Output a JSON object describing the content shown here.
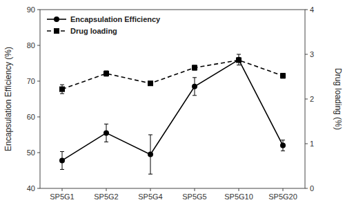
{
  "chart_data": {
    "type": "line",
    "categories": [
      "SP5G1",
      "SP5G2",
      "SP5G4",
      "SP5G5",
      "SP5G10",
      "SP5G20"
    ],
    "series": [
      {
        "name": "Encapsulation Efficiency",
        "color": "black",
        "marker": "circle",
        "line_style": "solid",
        "values": [
          47.8,
          55.5,
          49.5,
          68.5,
          76.0,
          52.0
        ],
        "errors": [
          2.5,
          2.5,
          5.5,
          2.5,
          1.5,
          1.5
        ]
      },
      {
        "name": "Drug loading",
        "color": "black",
        "marker": "square",
        "line_style": "dashed",
        "axis": "y2",
        "values": [
          2.22,
          2.57,
          2.35,
          2.7,
          2.87,
          2.52
        ],
        "errors": [
          0.1,
          0.06,
          0.045,
          0.055,
          0.04,
          0.055
        ]
      }
    ],
    "ylabel": "Encapsulation Efficiency (%)",
    "y2label": "Drug loading (%)",
    "ylim": [
      40,
      90
    ],
    "yticks": [
      40,
      50,
      60,
      70,
      80,
      90
    ],
    "y2lim": [
      0,
      4
    ],
    "y2ticks": [
      0,
      1,
      2,
      3,
      4
    ],
    "legend": "upper left",
    "grid": false
  }
}
